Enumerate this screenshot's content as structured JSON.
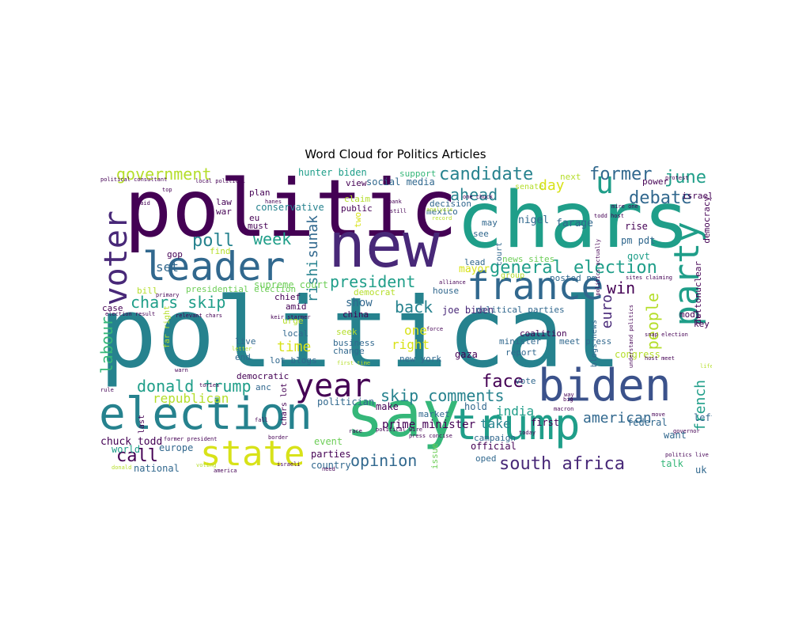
{
  "title": "Word Cloud for Politics Articles",
  "palette": {
    "purple": "#440154",
    "indigo": "#482878",
    "blue": "#3b528b",
    "steel": "#31688e",
    "teal": "#26828e",
    "sea": "#1f9e89",
    "green": "#35b779",
    "lime": "#6ece58",
    "yellow": "#b5de2b",
    "bright": "#d8e219"
  },
  "words": [
    {
      "text": "political",
      "color": "#26828e"
    },
    {
      "text": "politic",
      "color": "#440154"
    },
    {
      "text": "chars",
      "color": "#1f9e89"
    },
    {
      "text": "new",
      "color": "#482878"
    },
    {
      "text": "say",
      "color": "#35b779"
    },
    {
      "text": "election",
      "color": "#26828e"
    },
    {
      "text": "trump",
      "color": "#1f9e89"
    },
    {
      "text": "biden",
      "color": "#3b528b"
    },
    {
      "text": "party",
      "color": "#1f9e89"
    },
    {
      "text": "leader",
      "color": "#31688e"
    },
    {
      "text": "france",
      "color": "#31688e"
    },
    {
      "text": "voter",
      "color": "#482878"
    },
    {
      "text": "state",
      "color": "#d8e219"
    },
    {
      "text": "year",
      "color": "#440154"
    },
    {
      "text": "u",
      "color": "#1f9e89"
    },
    {
      "text": "labour",
      "color": "#35b779"
    },
    {
      "text": "people",
      "color": "#b5de2b"
    },
    {
      "text": "french",
      "color": "#1f9e89"
    },
    {
      "text": "debate",
      "color": "#31688e"
    },
    {
      "text": "former",
      "color": "#31688e"
    },
    {
      "text": "june",
      "color": "#1f9e89"
    },
    {
      "text": "government",
      "color": "#b5de2b"
    },
    {
      "text": "candidate",
      "color": "#26828e"
    },
    {
      "text": "general election",
      "color": "#1f9e89"
    },
    {
      "text": "skip comments",
      "color": "#26828e"
    },
    {
      "text": "south africa",
      "color": "#482878"
    },
    {
      "text": "donald trump",
      "color": "#1f9e89"
    },
    {
      "text": "chars skip",
      "color": "#1f9e89"
    },
    {
      "text": "president",
      "color": "#1f9e89"
    },
    {
      "text": "poll",
      "color": "#26828e"
    },
    {
      "text": "week",
      "color": "#1f9e89"
    },
    {
      "text": "call",
      "color": "#440154"
    },
    {
      "text": "opinion",
      "color": "#31688e"
    },
    {
      "text": "face",
      "color": "#440154"
    },
    {
      "text": "ahead",
      "color": "#26828e"
    },
    {
      "text": "day",
      "color": "#d8e219"
    },
    {
      "text": "win",
      "color": "#440154"
    },
    {
      "text": "back",
      "color": "#26828e"
    },
    {
      "text": "rishi",
      "color": "#26828e"
    },
    {
      "text": "sunak",
      "color": "#31688e"
    },
    {
      "text": "time",
      "color": "#d8e219"
    },
    {
      "text": "euro",
      "color": "#482878"
    },
    {
      "text": "republican",
      "color": "#b5de2b"
    },
    {
      "text": "american",
      "color": "#31688e"
    },
    {
      "text": "right",
      "color": "#d8e219"
    },
    {
      "text": "india",
      "color": "#1f9e89"
    },
    {
      "text": "take",
      "color": "#26828e"
    },
    {
      "text": "one",
      "color": "#d8e219"
    },
    {
      "text": "prime minister",
      "color": "#440154"
    },
    {
      "text": "show",
      "color": "#31688e"
    },
    {
      "text": "set",
      "color": "#31688e"
    },
    {
      "text": "hunter biden",
      "color": "#1f9e89"
    },
    {
      "text": "social media",
      "color": "#31688e"
    },
    {
      "text": "conservative",
      "color": "#26828e"
    },
    {
      "text": "supreme court",
      "color": "#6ece58"
    },
    {
      "text": "presidential election",
      "color": "#6ece58"
    },
    {
      "text": "nigel",
      "color": "#31688e"
    },
    {
      "text": "farage",
      "color": "#31688e"
    },
    {
      "text": "mayor",
      "color": "#d8e219"
    },
    {
      "text": "rise",
      "color": "#440154"
    },
    {
      "text": "pm pdt",
      "color": "#31688e"
    },
    {
      "text": "govt",
      "color": "#1f9e89"
    },
    {
      "text": "chuck todd",
      "color": "#440154"
    },
    {
      "text": "world",
      "color": "#1f9e89"
    },
    {
      "text": "national",
      "color": "#31688e"
    },
    {
      "text": "europe",
      "color": "#31688e"
    },
    {
      "text": "congress",
      "color": "#b5de2b"
    },
    {
      "text": "federal",
      "color": "#31688e"
    },
    {
      "text": "left",
      "color": "#31688e"
    },
    {
      "text": "want",
      "color": "#31688e"
    },
    {
      "text": "talk",
      "color": "#35b779"
    },
    {
      "text": "uk",
      "color": "#31688e"
    },
    {
      "text": "country",
      "color": "#31688e"
    },
    {
      "text": "parties",
      "color": "#440154"
    },
    {
      "text": "official",
      "color": "#440154"
    },
    {
      "text": "campaign",
      "color": "#31688e"
    },
    {
      "text": "oped",
      "color": "#31688e"
    },
    {
      "text": "event",
      "color": "#6ece58"
    },
    {
      "text": "first",
      "color": "#440154"
    },
    {
      "text": "hold",
      "color": "#31688e"
    },
    {
      "text": "make",
      "color": "#440154"
    },
    {
      "text": "politician",
      "color": "#31688e"
    },
    {
      "text": "market",
      "color": "#31688e"
    },
    {
      "text": "new york",
      "color": "#31688e"
    },
    {
      "text": "gaza",
      "color": "#440154"
    },
    {
      "text": "joe biden",
      "color": "#482878"
    },
    {
      "text": "political parties",
      "color": "#31688e"
    },
    {
      "text": "democrat",
      "color": "#b5de2b"
    },
    {
      "text": "house",
      "color": "#31688e"
    },
    {
      "text": "lead",
      "color": "#31688e"
    },
    {
      "text": "china",
      "color": "#440154"
    },
    {
      "text": "business",
      "color": "#31688e"
    },
    {
      "text": "change",
      "color": "#31688e"
    },
    {
      "text": "local",
      "color": "#31688e"
    },
    {
      "text": "live",
      "color": "#31688e"
    },
    {
      "text": "end",
      "color": "#31688e"
    },
    {
      "text": "democratic",
      "color": "#440154"
    },
    {
      "text": "anc",
      "color": "#31688e"
    },
    {
      "text": "lot blogs",
      "color": "#31688e"
    },
    {
      "text": "coalition",
      "color": "#440154"
    },
    {
      "text": "minister",
      "color": "#31688e"
    },
    {
      "text": "report",
      "color": "#31688e"
    },
    {
      "text": "meet press",
      "color": "#31688e"
    },
    {
      "text": "blogs news",
      "color": "#31688e"
    },
    {
      "text": "posted pm",
      "color": "#31688e"
    },
    {
      "text": "news sites",
      "color": "#6ece58"
    },
    {
      "text": "court",
      "color": "#31688e"
    },
    {
      "text": "group",
      "color": "#b5de2b"
    },
    {
      "text": "vote",
      "color": "#31688e"
    },
    {
      "text": "decision",
      "color": "#31688e"
    },
    {
      "text": "mexico",
      "color": "#31688e"
    },
    {
      "text": "claim",
      "color": "#b5de2b"
    },
    {
      "text": "public",
      "color": "#440154"
    },
    {
      "text": "two",
      "color": "#d8e219"
    },
    {
      "text": "view",
      "color": "#440154"
    },
    {
      "text": "support",
      "color": "#35b779"
    },
    {
      "text": "plan",
      "color": "#440154"
    },
    {
      "text": "law",
      "color": "#440154"
    },
    {
      "text": "war",
      "color": "#440154"
    },
    {
      "text": "eu",
      "color": "#440154"
    },
    {
      "text": "must",
      "color": "#440154"
    },
    {
      "text": "gop",
      "color": "#440154"
    },
    {
      "text": "bill",
      "color": "#b5de2b"
    },
    {
      "text": "case",
      "color": "#440154"
    },
    {
      "text": "chief",
      "color": "#440154"
    },
    {
      "text": "amid",
      "color": "#440154"
    },
    {
      "text": "urge",
      "color": "#b5de2b"
    },
    {
      "text": "seek",
      "color": "#b5de2b"
    },
    {
      "text": "find",
      "color": "#b5de2b"
    },
    {
      "text": "far right",
      "color": "#b5de2b"
    },
    {
      "text": "next",
      "color": "#b5de2b"
    },
    {
      "text": "senate",
      "color": "#b5de2b"
    },
    {
      "text": "may",
      "color": "#31688e"
    },
    {
      "text": "see",
      "color": "#31688e"
    },
    {
      "text": "power",
      "color": "#440154"
    },
    {
      "text": "israel",
      "color": "#440154"
    },
    {
      "text": "democracy",
      "color": "#440154"
    },
    {
      "text": "nuclear",
      "color": "#440154"
    },
    {
      "text": "dutton",
      "color": "#440154"
    },
    {
      "text": "key",
      "color": "#440154"
    },
    {
      "text": "modi",
      "color": "#440154"
    },
    {
      "text": "issue",
      "color": "#6ece58"
    },
    {
      "text": "chars lot",
      "color": "#440154"
    },
    {
      "text": "last",
      "color": "#440154"
    },
    {
      "text": "need",
      "color": "#440154"
    },
    {
      "text": "todd host",
      "color": "#440154"
    },
    {
      "text": "mire one",
      "color": "#440154"
    },
    {
      "text": "host meet",
      "color": "#440154"
    },
    {
      "text": "snap election",
      "color": "#440154"
    },
    {
      "text": "politics live",
      "color": "#440154"
    },
    {
      "text": "governor",
      "color": "#440154"
    },
    {
      "text": "border",
      "color": "#440154"
    },
    {
      "text": "tories",
      "color": "#440154"
    },
    {
      "text": "political wire",
      "color": "#440154"
    },
    {
      "text": "press concise",
      "color": "#440154"
    },
    {
      "text": "former president",
      "color": "#440154"
    },
    {
      "text": "keir starmer",
      "color": "#440154"
    },
    {
      "text": "election result",
      "color": "#440154"
    },
    {
      "text": "relevant chars",
      "color": "#440154"
    },
    {
      "text": "primary",
      "color": "#440154"
    },
    {
      "text": "alliance",
      "color": "#440154"
    },
    {
      "text": "sites claiming",
      "color": "#440154"
    },
    {
      "text": "macron",
      "color": "#440154"
    },
    {
      "text": "bank",
      "color": "#440154"
    },
    {
      "text": "still",
      "color": "#440154"
    },
    {
      "text": "said",
      "color": "#440154"
    },
    {
      "text": "hanes",
      "color": "#440154"
    },
    {
      "text": "political consultant",
      "color": "#440154"
    },
    {
      "text": "local political",
      "color": "#440154"
    },
    {
      "text": "one chuck",
      "color": "#440154"
    },
    {
      "text": "protest",
      "color": "#440154"
    },
    {
      "text": "top",
      "color": "#440154"
    },
    {
      "text": "letter",
      "color": "#b5de2b"
    },
    {
      "text": "warn",
      "color": "#440154"
    },
    {
      "text": "rule",
      "color": "#440154"
    },
    {
      "text": "israeli",
      "color": "#440154"
    },
    {
      "text": "america",
      "color": "#440154"
    },
    {
      "text": "first time",
      "color": "#b5de2b"
    },
    {
      "text": "fall",
      "color": "#440154"
    },
    {
      "text": "race",
      "color": "#440154"
    },
    {
      "text": "today",
      "color": "#440154"
    },
    {
      "text": "move",
      "color": "#440154"
    },
    {
      "text": "way",
      "color": "#440154"
    },
    {
      "text": "big",
      "color": "#440154"
    },
    {
      "text": "life",
      "color": "#b5de2b"
    },
    {
      "text": "voting",
      "color": "#b5de2b"
    },
    {
      "text": "donald",
      "color": "#b5de2b"
    },
    {
      "text": "force",
      "color": "#440154"
    },
    {
      "text": "record",
      "color": "#b5de2b"
    },
    {
      "text": "analysis",
      "color": "#b5de2b"
    },
    {
      "text": "understand politics",
      "color": "#440154"
    },
    {
      "text": "politics actually",
      "color": "#440154"
    }
  ]
}
